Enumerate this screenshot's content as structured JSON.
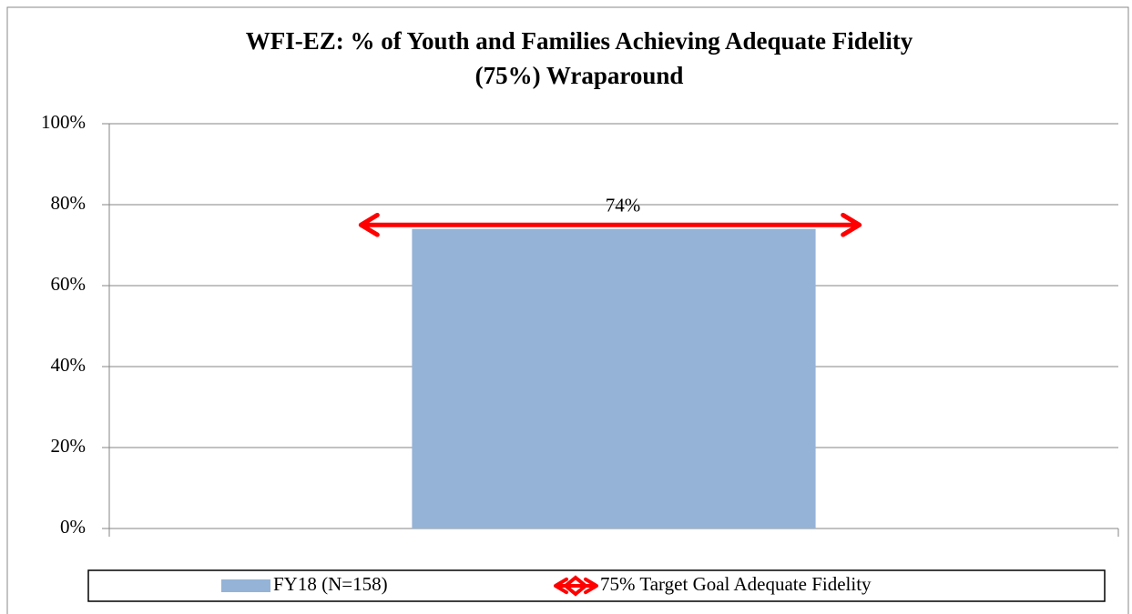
{
  "chart_data": {
    "type": "bar",
    "title": [
      "WFI-EZ: % of Youth and Families Achieving Adequate Fidelity",
      "(75%) Wraparound"
    ],
    "categories": [
      null
    ],
    "series": [
      {
        "name": "FY18 (N=158)",
        "color": "#95b3d7",
        "values": [
          74
        ],
        "value_labels": [
          "74%"
        ]
      }
    ],
    "target": {
      "name": "75% Target Goal Adequate Fidelity",
      "value": 75,
      "color": "#ff0000"
    },
    "ylim": [
      0,
      100
    ],
    "yticks": [
      {
        "value": 0,
        "label": "0%"
      },
      {
        "value": 20,
        "label": "20%"
      },
      {
        "value": 40,
        "label": "40%"
      },
      {
        "value": 60,
        "label": "60%"
      },
      {
        "value": 80,
        "label": "80%"
      },
      {
        "value": 100,
        "label": "100%"
      }
    ],
    "grid": true,
    "legend": "bottom"
  }
}
